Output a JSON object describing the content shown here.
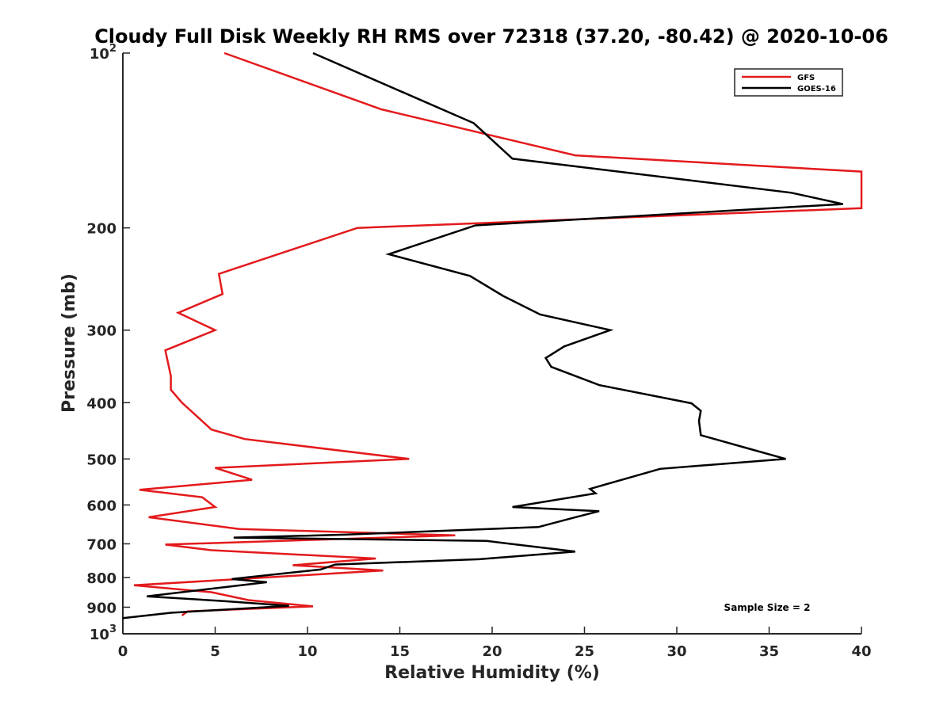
{
  "chart_data": {
    "type": "line",
    "title": "Cloudy Full Disk Weekly RH RMS over 72318 (37.20, -80.42) @ 2020-10-06",
    "xlabel": "Relative Humidity (%)",
    "ylabel": "Pressure (mb)",
    "xlim": [
      0,
      40
    ],
    "ylim": [
      100,
      1000
    ],
    "yscale": "log",
    "y_reversed": true,
    "grid": false,
    "legend_position": "top-right",
    "annotation": "Sample Size = 2",
    "x_ticks": [
      {
        "value": 0,
        "label": "0"
      },
      {
        "value": 5,
        "label": "5"
      },
      {
        "value": 10,
        "label": "10"
      },
      {
        "value": 15,
        "label": "15"
      },
      {
        "value": 20,
        "label": "20"
      },
      {
        "value": 25,
        "label": "25"
      },
      {
        "value": 30,
        "label": "30"
      },
      {
        "value": 35,
        "label": "35"
      },
      {
        "value": 40,
        "label": "40"
      }
    ],
    "y_ticks": [
      {
        "value": 100,
        "label": "10",
        "sup": "2"
      },
      {
        "value": 200,
        "label": "200"
      },
      {
        "value": 300,
        "label": "300"
      },
      {
        "value": 400,
        "label": "400"
      },
      {
        "value": 500,
        "label": "500"
      },
      {
        "value": 600,
        "label": "600"
      },
      {
        "value": 700,
        "label": "700"
      },
      {
        "value": 800,
        "label": "800"
      },
      {
        "value": 900,
        "label": "900"
      },
      {
        "value": 1000,
        "label": "10",
        "sup": "3"
      }
    ],
    "series": [
      {
        "name": "GFS",
        "color": "#e31a1c",
        "points": [
          [
            5.5,
            100
          ],
          [
            14,
            125
          ],
          [
            24.5,
            150
          ],
          [
            40,
            160
          ],
          [
            40,
            185
          ],
          [
            12.7,
            200
          ],
          [
            5.2,
            240
          ],
          [
            5.4,
            260
          ],
          [
            3.0,
            280
          ],
          [
            5.0,
            300
          ],
          [
            2.3,
            325
          ],
          [
            2.6,
            360
          ],
          [
            2.6,
            380
          ],
          [
            3.2,
            400
          ],
          [
            4.8,
            445
          ],
          [
            6.6,
            462
          ],
          [
            15.5,
            500
          ],
          [
            5.0,
            518
          ],
          [
            7.0,
            543
          ],
          [
            0.9,
            565
          ],
          [
            4.3,
            582
          ],
          [
            5.0,
            605
          ],
          [
            1.4,
            630
          ],
          [
            6.3,
            660
          ],
          [
            18.0,
            677
          ],
          [
            2.3,
            702
          ],
          [
            4.8,
            718
          ],
          [
            13.7,
            742
          ],
          [
            9.2,
            762
          ],
          [
            14.1,
            778
          ],
          [
            0.6,
            825
          ],
          [
            4.8,
            848
          ],
          [
            6.8,
            875
          ],
          [
            10.3,
            897
          ],
          [
            3.5,
            915
          ],
          [
            3.2,
            930
          ]
        ]
      },
      {
        "name": "GOES-16",
        "color": "#000000",
        "points": [
          [
            10.3,
            100
          ],
          [
            19,
            132
          ],
          [
            21.1,
            152
          ],
          [
            36.2,
            174
          ],
          [
            39.0,
            182
          ],
          [
            19.1,
            198
          ],
          [
            14.4,
            222
          ],
          [
            18.8,
            242
          ],
          [
            20.6,
            262
          ],
          [
            22.6,
            282
          ],
          [
            26.4,
            300
          ],
          [
            23.9,
            320
          ],
          [
            22.9,
            335
          ],
          [
            23.2,
            347
          ],
          [
            25.8,
            373
          ],
          [
            30.8,
            401
          ],
          [
            31.3,
            413
          ],
          [
            31.2,
            430
          ],
          [
            31.3,
            455
          ],
          [
            33.7,
            478
          ],
          [
            35.9,
            500
          ],
          [
            29.1,
            520
          ],
          [
            27.3,
            540
          ],
          [
            25.3,
            563
          ],
          [
            25.6,
            573
          ],
          [
            21.1,
            605
          ],
          [
            25.8,
            615
          ],
          [
            24.5,
            630
          ],
          [
            22.5,
            655
          ],
          [
            12,
            675
          ],
          [
            6.0,
            683
          ],
          [
            19.7,
            692
          ],
          [
            24.5,
            722
          ],
          [
            19.3,
            744
          ],
          [
            11.5,
            760
          ],
          [
            10.7,
            775
          ],
          [
            5.9,
            805
          ],
          [
            7.8,
            815
          ],
          [
            1.3,
            862
          ],
          [
            5.4,
            878
          ],
          [
            9.0,
            895
          ],
          [
            2.6,
            920
          ],
          [
            0,
            940
          ]
        ]
      }
    ]
  }
}
